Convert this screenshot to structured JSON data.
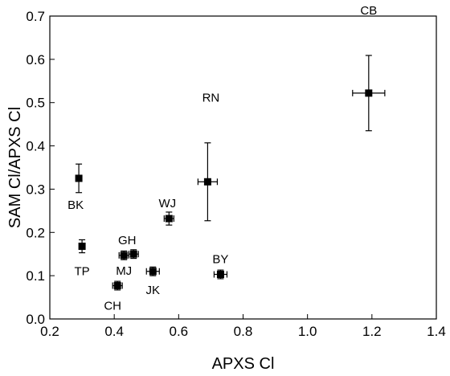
{
  "chart_data": {
    "type": "scatter",
    "title": "",
    "xlabel": "APXS Cl",
    "ylabel": "SAM Cl/APXS Cl",
    "xlim": [
      0.2,
      1.4
    ],
    "ylim": [
      0.0,
      0.7
    ],
    "xticks": [
      "0.2",
      "0.4",
      "0.6",
      "0.8",
      "1.0",
      "1.2",
      "1.4"
    ],
    "yticks": [
      "0.0",
      "0.1",
      "0.2",
      "0.3",
      "0.4",
      "0.5",
      "0.6",
      "0.7"
    ],
    "grid": false,
    "marker": "square",
    "color": "#000000",
    "points": [
      {
        "label": "BK",
        "x": 0.29,
        "y": 0.325,
        "yerr": 0.033,
        "xerr": 0.0
      },
      {
        "label": "TP",
        "x": 0.3,
        "y": 0.168,
        "yerr": 0.015,
        "xerr": 0.0
      },
      {
        "label": "CH",
        "x": 0.41,
        "y": 0.077,
        "yerr": 0.01,
        "xerr": 0.015
      },
      {
        "label": "MJ",
        "x": 0.43,
        "y": 0.147,
        "yerr": 0.01,
        "xerr": 0.015
      },
      {
        "label": "GH",
        "x": 0.46,
        "y": 0.15,
        "yerr": 0.01,
        "xerr": 0.015
      },
      {
        "label": "JK",
        "x": 0.52,
        "y": 0.11,
        "yerr": 0.01,
        "xerr": 0.02
      },
      {
        "label": "WJ",
        "x": 0.57,
        "y": 0.232,
        "yerr": 0.015,
        "xerr": 0.015
      },
      {
        "label": "RN",
        "x": 0.69,
        "y": 0.317,
        "yerr": 0.09,
        "xerr": 0.03
      },
      {
        "label": "BY",
        "x": 0.73,
        "y": 0.103,
        "yerr": 0.01,
        "xerr": 0.02
      },
      {
        "label": "CB",
        "x": 1.19,
        "y": 0.522,
        "yerr": 0.087,
        "xerr": 0.05
      }
    ]
  }
}
